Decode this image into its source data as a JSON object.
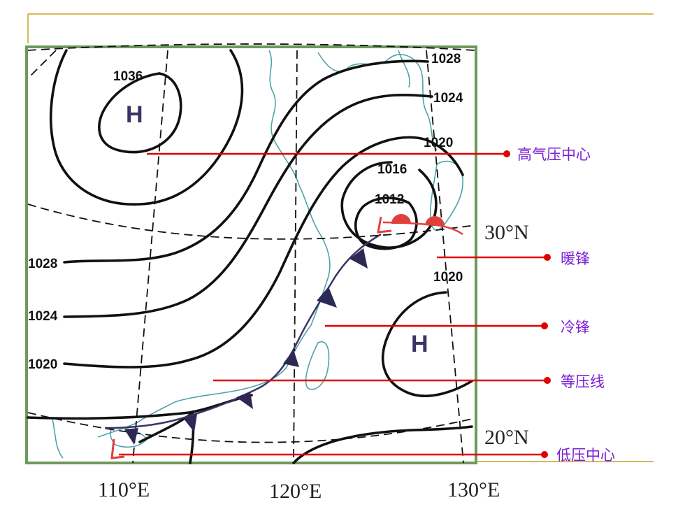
{
  "map": {
    "high_marker": "H",
    "low_marker": "L",
    "isobar_labels": [
      "1036",
      "1028",
      "1024",
      "1020",
      "1016",
      "1012",
      "1028",
      "1024",
      "1020",
      "1020"
    ],
    "lat_labels": [
      "30°N",
      "20°N"
    ],
    "lon_labels": [
      "110°E",
      "120°E",
      "130°E"
    ]
  },
  "annotations": {
    "high_center": "高气压中心",
    "warm_front": "暖锋",
    "cold_front": "冷锋",
    "isobar": "等压线",
    "low_center": "低压中心"
  },
  "colors": {
    "frame_green": "#6d9a5c",
    "coast": "#4fa3a8",
    "isobar": "#111111",
    "front_line": "#3b3366",
    "warm_front": "#e0403c",
    "annotation_line": "#e00000",
    "annotation_text": "#7a1fd6",
    "accent_gold": "#c9a227"
  }
}
